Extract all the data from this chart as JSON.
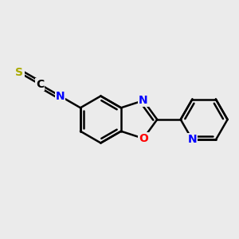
{
  "background_color": "#ebebeb",
  "bond_color": "#000000",
  "bond_width": 1.8,
  "atom_colors": {
    "N": "#0000ff",
    "O": "#ff0000",
    "S": "#aaaa00",
    "C": "#000000"
  },
  "font_size": 10,
  "fig_size": [
    3.0,
    3.0
  ],
  "dpi": 100
}
